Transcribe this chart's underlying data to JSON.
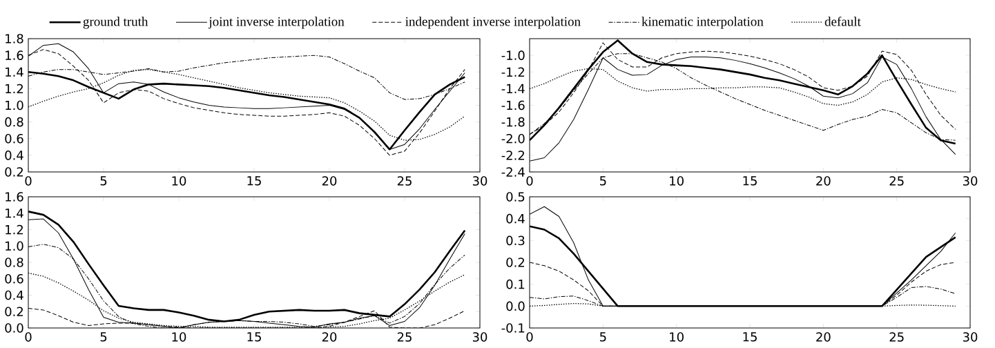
{
  "chart_data": [
    {
      "type": "line",
      "x": [
        0,
        1,
        2,
        3,
        4,
        5,
        6,
        7,
        8,
        9,
        10,
        11,
        12,
        13,
        14,
        15,
        16,
        17,
        18,
        19,
        20,
        21,
        22,
        23,
        24,
        25,
        26,
        27,
        28,
        29
      ],
      "xlim": [
        0,
        30
      ],
      "xticks": [
        0,
        5,
        10,
        15,
        20,
        25,
        30
      ],
      "ylim": [
        0.2,
        1.8
      ],
      "yticks": [
        0.2,
        0.4,
        0.6,
        0.8,
        {
          "value": 1.0,
          "label": "1.0"
        },
        1.2,
        1.4,
        1.6,
        1.8
      ],
      "grid": false,
      "legend": "top",
      "marker": "none",
      "series": [
        {
          "name": "ground truth",
          "color": "#000000",
          "line_style": "solid",
          "values": [
            1.4,
            1.38,
            1.35,
            1.3,
            1.22,
            1.15,
            1.08,
            1.19,
            1.25,
            1.26,
            1.25,
            1.24,
            1.23,
            1.21,
            1.18,
            1.15,
            1.12,
            1.1,
            1.07,
            1.04,
            1.01,
            0.96,
            0.85,
            0.68,
            0.47,
            0.7,
            0.92,
            1.13,
            1.25,
            1.34
          ]
        },
        {
          "name": "joint inverse interpolation",
          "color": "#000000",
          "line_style": "solid",
          "values": [
            1.59,
            1.72,
            1.74,
            1.64,
            1.44,
            1.15,
            1.26,
            1.28,
            1.25,
            1.16,
            1.09,
            1.04,
            1.0,
            0.98,
            0.97,
            0.96,
            0.96,
            0.97,
            0.98,
            0.99,
            1.0,
            0.95,
            0.85,
            0.67,
            0.47,
            0.53,
            0.72,
            0.95,
            1.17,
            1.39
          ]
        },
        {
          "name": "independent inverse interpolation",
          "color": "#000000",
          "line_style": "dashed",
          "values": [
            1.6,
            1.67,
            1.62,
            1.47,
            1.3,
            1.03,
            1.15,
            1.19,
            1.17,
            1.08,
            1.02,
            0.97,
            0.94,
            0.91,
            0.89,
            0.88,
            0.87,
            0.87,
            0.88,
            0.89,
            0.91,
            0.87,
            0.76,
            0.6,
            0.4,
            0.45,
            0.67,
            0.93,
            1.2,
            1.43
          ]
        },
        {
          "name": "kinematic interpolation",
          "color": "#000000",
          "line_style": "dashdot",
          "values": [
            1.35,
            1.4,
            1.43,
            1.43,
            1.4,
            1.37,
            1.39,
            1.41,
            1.44,
            1.4,
            1.41,
            1.45,
            1.48,
            1.51,
            1.53,
            1.55,
            1.57,
            1.58,
            1.59,
            1.6,
            1.58,
            1.5,
            1.41,
            1.33,
            1.15,
            1.07,
            1.08,
            1.13,
            1.2,
            1.28
          ]
        },
        {
          "name": "default",
          "color": "#000000",
          "line_style": "dotted",
          "values": [
            0.98,
            1.05,
            1.11,
            1.16,
            1.2,
            1.27,
            1.36,
            1.42,
            1.43,
            1.4,
            1.37,
            1.33,
            1.29,
            1.25,
            1.21,
            1.18,
            1.15,
            1.13,
            1.11,
            1.1,
            1.09,
            1.03,
            0.93,
            0.81,
            0.64,
            0.58,
            0.59,
            0.65,
            0.74,
            0.87
          ]
        }
      ]
    },
    {
      "type": "line",
      "x": [
        0,
        1,
        2,
        3,
        4,
        5,
        6,
        7,
        8,
        9,
        10,
        11,
        12,
        13,
        14,
        15,
        16,
        17,
        18,
        19,
        20,
        21,
        22,
        23,
        24,
        25,
        26,
        27,
        28,
        29
      ],
      "xlim": [
        0,
        30
      ],
      "xticks": [
        0,
        5,
        10,
        15,
        20,
        25,
        30
      ],
      "ylim": [
        -2.4,
        -0.8
      ],
      "yticks": [
        -2.4,
        -2.2,
        {
          "value": -2.0,
          "label": "-2.0"
        },
        -1.8,
        -1.6,
        -1.4,
        -1.2,
        {
          "value": -1.0,
          "label": "-1.0"
        }
      ],
      "grid": false,
      "marker": "none",
      "series": [
        {
          "color": "#000000",
          "line_style": "solid",
          "values": [
            -2.02,
            -1.84,
            -1.63,
            -1.4,
            -1.17,
            -0.96,
            -0.82,
            -0.98,
            -1.08,
            -1.11,
            -1.12,
            -1.13,
            -1.15,
            -1.17,
            -1.2,
            -1.23,
            -1.27,
            -1.3,
            -1.34,
            -1.38,
            -1.42,
            -1.47,
            -1.37,
            -1.22,
            -1.0,
            -1.3,
            -1.59,
            -1.87,
            -2.02,
            -2.06
          ]
        },
        {
          "color": "#000000",
          "line_style": "solid",
          "values": [
            -2.27,
            -2.23,
            -2.05,
            -1.77,
            -1.41,
            -1.03,
            -1.17,
            -1.24,
            -1.23,
            -1.12,
            -1.05,
            -1.02,
            -1.02,
            -1.03,
            -1.06,
            -1.1,
            -1.15,
            -1.21,
            -1.28,
            -1.37,
            -1.49,
            -1.51,
            -1.46,
            -1.33,
            -1.02,
            -1.11,
            -1.4,
            -1.74,
            -2.01,
            -2.19
          ]
        },
        {
          "color": "#000000",
          "line_style": "dashed",
          "values": [
            -1.95,
            -1.84,
            -1.68,
            -1.45,
            -1.18,
            -0.85,
            -1.05,
            -1.14,
            -1.14,
            -1.03,
            -0.98,
            -0.96,
            -0.95,
            -0.96,
            -0.98,
            -1.01,
            -1.05,
            -1.1,
            -1.17,
            -1.26,
            -1.39,
            -1.42,
            -1.37,
            -1.25,
            -0.95,
            -0.99,
            -1.18,
            -1.47,
            -1.72,
            -1.89
          ]
        },
        {
          "color": "#000000",
          "line_style": "dashdot",
          "values": [
            -1.95,
            -1.82,
            -1.64,
            -1.42,
            -1.22,
            -1.03,
            -0.98,
            -0.98,
            -1.03,
            -1.08,
            -1.16,
            -1.27,
            -1.36,
            -1.44,
            -1.52,
            -1.59,
            -1.66,
            -1.72,
            -1.78,
            -1.84,
            -1.9,
            -1.83,
            -1.77,
            -1.73,
            -1.65,
            -1.69,
            -1.81,
            -1.93,
            -2.01,
            -2.02
          ]
        },
        {
          "color": "#000000",
          "line_style": "dotted",
          "values": [
            -1.4,
            -1.34,
            -1.26,
            -1.19,
            -1.16,
            -1.17,
            -1.31,
            -1.39,
            -1.43,
            -1.41,
            -1.41,
            -1.4,
            -1.4,
            -1.39,
            -1.39,
            -1.38,
            -1.38,
            -1.39,
            -1.44,
            -1.5,
            -1.58,
            -1.6,
            -1.56,
            -1.47,
            -1.32,
            -1.27,
            -1.29,
            -1.35,
            -1.4,
            -1.44
          ]
        }
      ]
    },
    {
      "type": "line",
      "x": [
        0,
        1,
        2,
        3,
        4,
        5,
        6,
        7,
        8,
        9,
        10,
        11,
        12,
        13,
        14,
        15,
        16,
        17,
        18,
        19,
        20,
        21,
        22,
        23,
        24,
        25,
        26,
        27,
        28,
        29
      ],
      "xlim": [
        0,
        30
      ],
      "xticks": [
        0,
        5,
        10,
        15,
        20,
        25,
        30
      ],
      "ylim": [
        0.0,
        1.6
      ],
      "yticks": [
        {
          "value": 0.0,
          "label": "0.0"
        },
        0.2,
        0.4,
        0.6,
        0.8,
        {
          "value": 1.0,
          "label": "1.0"
        },
        1.2,
        1.4,
        1.6
      ],
      "grid": false,
      "marker": "none",
      "series": [
        {
          "color": "#000000",
          "line_style": "solid",
          "values": [
            1.42,
            1.38,
            1.26,
            1.05,
            0.78,
            0.52,
            0.27,
            0.24,
            0.22,
            0.22,
            0.19,
            0.15,
            0.1,
            0.08,
            0.1,
            0.16,
            0.2,
            0.21,
            0.22,
            0.21,
            0.21,
            0.22,
            0.18,
            0.16,
            0.14,
            0.29,
            0.47,
            0.68,
            0.94,
            1.19
          ]
        },
        {
          "color": "#000000",
          "line_style": "solid",
          "values": [
            1.32,
            1.33,
            1.16,
            0.84,
            0.47,
            0.13,
            0.07,
            0.06,
            0.04,
            0.02,
            0.0,
            0.04,
            0.07,
            0.08,
            0.09,
            0.08,
            0.06,
            0.04,
            0.02,
            0.01,
            0.05,
            0.07,
            0.12,
            0.15,
            0.03,
            0.08,
            0.25,
            0.52,
            0.84,
            1.15
          ]
        },
        {
          "color": "#000000",
          "line_style": "dashed",
          "values": [
            0.24,
            0.22,
            0.15,
            0.07,
            0.03,
            0.05,
            0.06,
            0.06,
            0.04,
            0.02,
            0.01,
            0.0,
            0.0,
            0.0,
            0.0,
            0.0,
            0.0,
            0.0,
            0.0,
            0.0,
            0.02,
            0.07,
            0.14,
            0.21,
            0.01,
            0.0,
            0.0,
            0.04,
            0.12,
            0.21
          ]
        },
        {
          "color": "#000000",
          "line_style": "dashdot",
          "values": [
            0.99,
            1.02,
            0.98,
            0.84,
            0.6,
            0.33,
            0.14,
            0.05,
            0.02,
            0.0,
            0.0,
            0.04,
            0.07,
            0.08,
            0.09,
            0.08,
            0.08,
            0.07,
            0.05,
            0.02,
            0.04,
            0.07,
            0.11,
            0.15,
            0.06,
            0.14,
            0.3,
            0.53,
            0.73,
            0.89
          ]
        },
        {
          "color": "#000000",
          "line_style": "dotted",
          "values": [
            0.67,
            0.63,
            0.55,
            0.45,
            0.34,
            0.21,
            0.12,
            0.07,
            0.05,
            0.03,
            0.02,
            0.02,
            0.01,
            0.01,
            0.01,
            0.01,
            0.01,
            0.01,
            0.01,
            0.01,
            0.01,
            0.02,
            0.05,
            0.09,
            0.12,
            0.22,
            0.33,
            0.45,
            0.56,
            0.65
          ]
        }
      ]
    },
    {
      "type": "line",
      "x": [
        0,
        1,
        2,
        3,
        4,
        5,
        6,
        7,
        8,
        9,
        10,
        11,
        12,
        13,
        14,
        15,
        16,
        17,
        18,
        19,
        20,
        21,
        22,
        23,
        24,
        25,
        26,
        27,
        28,
        29
      ],
      "xlim": [
        0,
        30
      ],
      "xticks": [
        0,
        5,
        10,
        15,
        20,
        25,
        30
      ],
      "ylim": [
        -0.1,
        0.5
      ],
      "yticks": [
        -0.1,
        {
          "value": 0.0,
          "label": "0.0"
        },
        0.1,
        0.2,
        0.3,
        0.4,
        0.5
      ],
      "grid": false,
      "marker": "none",
      "series": [
        {
          "color": "#000000",
          "line_style": "solid",
          "values": [
            0.365,
            0.35,
            0.31,
            0.24,
            0.16,
            0.08,
            0,
            0,
            0,
            0,
            0,
            0,
            0,
            0,
            0,
            0,
            0,
            0,
            0,
            0,
            0,
            0,
            0,
            0,
            0,
            0.075,
            0.15,
            0.225,
            0.27,
            0.315
          ]
        },
        {
          "color": "#000000",
          "line_style": "solid",
          "values": [
            0.42,
            0.455,
            0.41,
            0.29,
            0.12,
            0,
            0,
            0,
            0,
            0,
            0,
            0,
            0,
            0,
            0,
            0,
            0,
            0,
            0,
            0,
            0,
            0,
            0,
            0,
            0,
            0.06,
            0.12,
            0.185,
            0.25,
            0.335
          ]
        },
        {
          "color": "#000000",
          "line_style": "dashed",
          "values": [
            0.2,
            0.185,
            0.16,
            0.12,
            0.07,
            0,
            0,
            0,
            0,
            0,
            0,
            0,
            0,
            0,
            0,
            0,
            0,
            0,
            0,
            0,
            0,
            0,
            0,
            0,
            0,
            0.05,
            0.11,
            0.16,
            0.19,
            0.2
          ]
        },
        {
          "color": "#000000",
          "line_style": "dashdot",
          "values": [
            0.04,
            0.033,
            0.043,
            0.046,
            0.025,
            0,
            0,
            0,
            0,
            0,
            0,
            0,
            0,
            0,
            0,
            0,
            0,
            0,
            0,
            0,
            0,
            0,
            0,
            0,
            0,
            0.04,
            0.085,
            0.09,
            0.078,
            0.057
          ]
        },
        {
          "color": "#000000",
          "line_style": "dotted",
          "values": [
            0.0,
            0.003,
            0.008,
            0.012,
            0.01,
            0,
            0,
            0,
            0,
            0,
            0,
            0,
            0,
            0,
            0,
            0,
            0,
            0,
            0,
            0,
            0,
            0,
            0,
            0,
            0,
            0.003,
            0.005,
            0.004,
            0.002,
            0.0
          ]
        }
      ]
    }
  ]
}
